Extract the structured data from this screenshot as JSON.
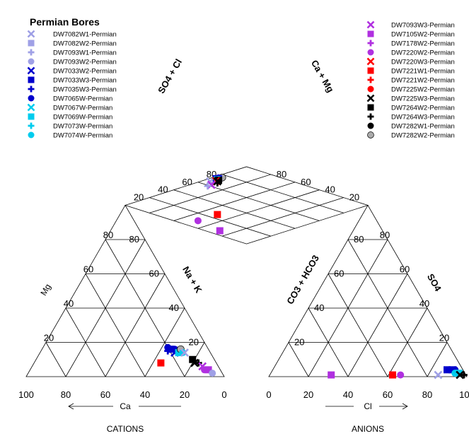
{
  "chart_data": {
    "type": "scatter",
    "subtype": "piper-diagram",
    "legend_title": "Permian Bores",
    "cation_axis_title": "CATIONS",
    "anion_axis_title": "ANIONS",
    "ca_label": "Ca",
    "cl_label": "Cl",
    "mg_label": "Mg",
    "nak_label": "Na + K",
    "so4_label": "SO",
    "so4_sub": "4",
    "co3_label": "CO",
    "co3_sub1": "3",
    "hco3_mid": " + HCO",
    "co3_sub2": "3",
    "so4cl_label": "SO",
    "so4cl_sub": "4",
    "so4cl_tail": " + Cl",
    "camg_label": "Ca + Mg",
    "bottom_ticks_left": [
      "100",
      "80",
      "60",
      "40",
      "20",
      "0"
    ],
    "bottom_ticks_right": [
      "0",
      "20",
      "40",
      "60",
      "80",
      "100"
    ],
    "mg_ticks": [
      "20",
      "40",
      "60",
      "80"
    ],
    "so4_ticks": [
      "20",
      "40",
      "60",
      "80"
    ],
    "nak_ticks": [
      "80",
      "60",
      "40",
      "20"
    ],
    "co3_ticks": [
      "80",
      "60",
      "40",
      "20"
    ],
    "diamond_left_upper_ticks": [
      "80",
      "60",
      "40",
      "20"
    ],
    "diamond_right_upper_ticks": [
      "80",
      "60",
      "40",
      "20"
    ],
    "legend_left": [
      {
        "name": "DW7082W1-Permian",
        "marker": "x",
        "color": "#9fa0e6"
      },
      {
        "name": "DW7082W2-Permian",
        "marker": "square",
        "color": "#9fa0e6"
      },
      {
        "name": "DW7093W1-Permian",
        "marker": "plus",
        "color": "#9fa0e6"
      },
      {
        "name": "DW7093W2-Permian",
        "marker": "circle",
        "color": "#9fa0e6"
      },
      {
        "name": "DW7033W2-Permian",
        "marker": "x",
        "color": "#0000cc"
      },
      {
        "name": "DW7033W3-Permian",
        "marker": "square",
        "color": "#0000cc"
      },
      {
        "name": "DW7035W3-Permian",
        "marker": "plus",
        "color": "#0000cc"
      },
      {
        "name": "DW7065W-Permian",
        "marker": "circle",
        "color": "#0000cc"
      },
      {
        "name": "DW7067W-Permian",
        "marker": "x",
        "color": "#00ccee"
      },
      {
        "name": "DW7069W-Permian",
        "marker": "square",
        "color": "#00ccee"
      },
      {
        "name": "DW7073W-Permian",
        "marker": "plus",
        "color": "#00ccee"
      },
      {
        "name": "DW7074W-Permian",
        "marker": "circle",
        "color": "#00ccee"
      }
    ],
    "legend_right": [
      {
        "name": "DW7093W3-Permian",
        "marker": "x",
        "color": "#b030e0"
      },
      {
        "name": "DW7105W2-Permian",
        "marker": "square",
        "color": "#b030e0"
      },
      {
        "name": "DW7178W2-Permian",
        "marker": "plus",
        "color": "#b030e0"
      },
      {
        "name": "DW7220W2-Permian",
        "marker": "circle",
        "color": "#b030e0"
      },
      {
        "name": "DW7220W3-Permian",
        "marker": "x",
        "color": "#ff0000"
      },
      {
        "name": "DW7221W1-Permian",
        "marker": "square",
        "color": "#ff0000"
      },
      {
        "name": "DW7221W2-Permian",
        "marker": "plus",
        "color": "#ff0000"
      },
      {
        "name": "DW7225W2-Permian",
        "marker": "circle",
        "color": "#ff0000"
      },
      {
        "name": "DW7225W3-Permian",
        "marker": "x",
        "color": "#000000"
      },
      {
        "name": "DW7264W2-Permian",
        "marker": "square",
        "color": "#000000"
      },
      {
        "name": "DW7264W3-Permian",
        "marker": "plus",
        "color": "#000000"
      },
      {
        "name": "DW7282W1-Permian",
        "marker": "circle",
        "color": "#000000"
      },
      {
        "name": "DW7282W2-Permian",
        "marker": "circle",
        "color": "#aaaaaa"
      }
    ],
    "cation_points": [
      {
        "marker": "square",
        "color": "#ff0000",
        "ca": 28,
        "mg": 8
      },
      {
        "marker": "square",
        "color": "#0000cc",
        "ca": 19,
        "mg": 16
      },
      {
        "marker": "circle",
        "color": "#0000cc",
        "ca": 20,
        "mg": 17
      },
      {
        "marker": "plus",
        "color": "#0000cc",
        "ca": 21,
        "mg": 15
      },
      {
        "marker": "circle",
        "color": "#0000cc",
        "ca": 17,
        "mg": 16
      },
      {
        "marker": "x",
        "color": "#0000cc",
        "ca": 18,
        "mg": 14
      },
      {
        "marker": "square",
        "color": "#00ccee",
        "ca": 16,
        "mg": 14
      },
      {
        "marker": "circle",
        "color": "#aaaaaa",
        "ca": 14,
        "mg": 16
      },
      {
        "marker": "circle",
        "color": "#00ccee",
        "ca": 14,
        "mg": 14
      },
      {
        "marker": "x",
        "color": "#9fa0e6",
        "ca": 13,
        "mg": 14
      },
      {
        "marker": "square",
        "color": "#000000",
        "ca": 11,
        "mg": 10
      },
      {
        "marker": "x",
        "color": "#000000",
        "ca": 11,
        "mg": 8
      },
      {
        "marker": "plus",
        "color": "#000000",
        "ca": 9,
        "mg": 8
      },
      {
        "marker": "x",
        "color": "#b030e0",
        "ca": 8,
        "mg": 6
      },
      {
        "marker": "square",
        "color": "#b030e0",
        "ca": 6,
        "mg": 4
      },
      {
        "marker": "circle",
        "color": "#9fa0e6",
        "ca": 5,
        "mg": 2
      },
      {
        "marker": "circle",
        "color": "#b030e0",
        "ca": 8,
        "mg": 4
      }
    ],
    "anion_points": [
      {
        "marker": "square",
        "color": "#b030e0",
        "cl": 31,
        "so4": 1
      },
      {
        "marker": "square",
        "color": "#ff0000",
        "cl": 62,
        "so4": 1
      },
      {
        "marker": "circle",
        "color": "#b030e0",
        "cl": 66,
        "so4": 1
      },
      {
        "marker": "x",
        "color": "#9fa0e6",
        "cl": 85,
        "so4": 1
      },
      {
        "marker": "square",
        "color": "#0000cc",
        "cl": 88,
        "so4": 4
      },
      {
        "marker": "circle",
        "color": "#0000cc",
        "cl": 89,
        "so4": 4
      },
      {
        "marker": "square",
        "color": "#0000cc",
        "cl": 91,
        "so4": 4
      },
      {
        "marker": "circle",
        "color": "#0000cc",
        "cl": 92,
        "so4": 4
      },
      {
        "marker": "circle",
        "color": "#00ccee",
        "cl": 93,
        "so4": 2
      },
      {
        "marker": "square",
        "color": "#00ccee",
        "cl": 95,
        "so4": 2
      },
      {
        "marker": "x",
        "color": "#000000",
        "cl": 96,
        "so4": 1
      },
      {
        "marker": "plus",
        "color": "#000000",
        "cl": 98,
        "so4": 1
      }
    ],
    "diamond_points": [
      {
        "marker": "square",
        "color": "#b030e0",
        "camg": 6,
        "so4cl": 28
      },
      {
        "marker": "circle",
        "color": "#b030e0",
        "camg": 10,
        "so4cl": 50
      },
      {
        "marker": "square",
        "color": "#ff0000",
        "camg": 26,
        "so4cl": 50
      },
      {
        "marker": "circle",
        "color": "#aaaaaa",
        "camg": 76,
        "so4cl": 96
      },
      {
        "marker": "square",
        "color": "#0000cc",
        "camg": 72,
        "so4cl": 97
      },
      {
        "marker": "circle",
        "color": "#0000cc",
        "camg": 74,
        "so4cl": 97
      },
      {
        "marker": "square",
        "color": "#0000cc",
        "camg": 73,
        "so4cl": 96
      },
      {
        "marker": "circle",
        "color": "#00ccee",
        "camg": 72,
        "so4cl": 95
      },
      {
        "marker": "square",
        "color": "#00ccee",
        "camg": 71,
        "so4cl": 95
      },
      {
        "marker": "x",
        "color": "#9fa0e6",
        "camg": 66,
        "so4cl": 96
      },
      {
        "marker": "square",
        "color": "#000000",
        "camg": 71,
        "so4cl": 94
      },
      {
        "marker": "x",
        "color": "#ff0000",
        "camg": 69,
        "so4cl": 94
      },
      {
        "marker": "x",
        "color": "#000000",
        "camg": 69,
        "so4cl": 93
      },
      {
        "marker": "plus",
        "color": "#000000",
        "camg": 67,
        "so4cl": 91
      },
      {
        "marker": "x",
        "color": "#b030e0",
        "camg": 62,
        "so4cl": 91
      },
      {
        "marker": "plus",
        "color": "#9fa0e6",
        "camg": 59,
        "so4cl": 91
      }
    ]
  }
}
